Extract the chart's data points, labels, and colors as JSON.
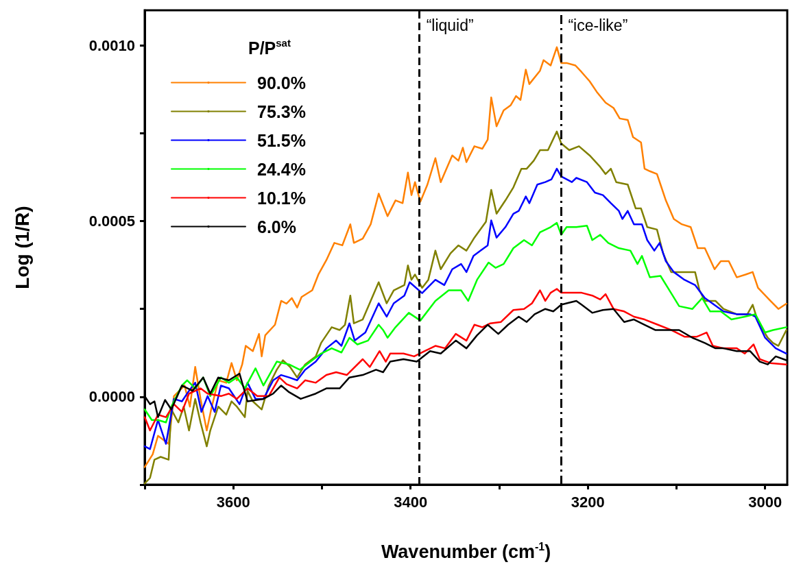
{
  "chart_data": {
    "type": "line",
    "xlabel": "Wavenumber (cm$^{-1}$)",
    "ylabel": "Log (1/R)",
    "legend_title": "P/P$^{sat}$",
    "legend": "top left",
    "marker": "none",
    "line_style": "solid",
    "grid": false,
    "xlim": [
      3700,
      2975
    ],
    "xticks": [
      {
        "value": 3700,
        "label": null
      },
      3600,
      {
        "value": 3500,
        "label": null
      },
      3400,
      {
        "value": 3300,
        "label": null
      },
      3200,
      {
        "value": 3100,
        "label": null
      },
      3000
    ],
    "ylim": [
      -0.00025,
      0.0011
    ],
    "yticks": [
      {
        "value": -0.00025,
        "label": null
      },
      {
        "value": 0,
        "label": "0.0000"
      },
      {
        "value": 0.00025,
        "label": null
      },
      {
        "value": 0.0005,
        "label": "0.0005"
      },
      {
        "value": 0.00075,
        "label": null
      },
      {
        "value": 0.001,
        "label": "0.0010"
      }
    ],
    "ref_lines": [
      {
        "axis": "x",
        "value": 3390,
        "label": "“liquid”",
        "line_style": "dashed",
        "color": "#000000"
      },
      {
        "axis": "x",
        "value": 3230,
        "label": "“ice-like”",
        "line_style": "dashdot",
        "color": "#000000"
      }
    ],
    "series": [
      {
        "name": "90.0%",
        "color": "#ff8000",
        "x": [
          3700,
          3691,
          3685,
          3673,
          3667,
          3655,
          3649,
          3643,
          3637,
          3630,
          3625,
          3617,
          3608,
          3602,
          3596,
          3590,
          3586,
          3578,
          3571,
          3568,
          3564,
          3553,
          3546,
          3540,
          3534,
          3528,
          3523,
          3511,
          3504,
          3495,
          3486,
          3477,
          3468,
          3464,
          3454,
          3445,
          3436,
          3426,
          3417,
          3409,
          3403,
          3399,
          3395,
          3389,
          3381,
          3372,
          3366,
          3353,
          3346,
          3341,
          3337,
          3328,
          3319,
          3313,
          3309,
          3303,
          3295,
          3287,
          3281,
          3276,
          3270,
          3266,
          3254,
          3250,
          3242,
          3235,
          3230,
          3224,
          3214,
          3207,
          3198,
          3190,
          3180,
          3171,
          3164,
          3155,
          3149,
          3140,
          3136,
          3130,
          3122,
          3118,
          3112,
          3103,
          3094,
          3084,
          3076,
          3068,
          3057,
          3050,
          3041,
          3032,
          3022,
          3014,
          3008,
          2994,
          2985,
          2976
        ],
        "values": [
          -0.0002,
          -0.000164,
          -0.000111,
          -0.000134,
          2e-06,
          3.2e-05,
          -2.8e-05,
          8.5e-05,
          -6e-06,
          -9.6e-05,
          -3.6e-05,
          4.7e-05,
          4e-05,
          9.6e-05,
          4.7e-05,
          9.2e-05,
          0.000145,
          0.00013,
          0.000179,
          0.000115,
          0.000175,
          0.000205,
          0.000273,
          0.000265,
          0.000281,
          0.000254,
          0.000284,
          0.000303,
          0.000348,
          0.000389,
          0.000438,
          0.000431,
          0.000491,
          0.000438,
          0.00045,
          0.000491,
          0.000578,
          0.000514,
          0.000559,
          0.000551,
          0.000638,
          0.000574,
          0.000611,
          0.000555,
          0.000604,
          0.000679,
          0.000611,
          0.000687,
          0.000672,
          0.000709,
          0.000668,
          0.000713,
          0.000706,
          0.000732,
          0.000852,
          0.00077,
          0.000815,
          0.00083,
          0.000856,
          0.000845,
          0.000931,
          0.00089,
          0.000928,
          0.000958,
          0.000943,
          0.000995,
          0.00095,
          0.00095,
          0.000943,
          0.000924,
          0.000898,
          0.000868,
          0.000837,
          0.000822,
          0.000792,
          0.000788,
          0.000739,
          0.000724,
          0.000649,
          0.000642,
          0.000634,
          0.000604,
          0.000559,
          0.000506,
          0.000491,
          0.000483,
          0.000423,
          0.000423,
          0.000363,
          0.000386,
          0.000386,
          0.00034,
          0.000348,
          0.000355,
          0.00031,
          0.000273,
          0.00025,
          0.000265
        ]
      },
      {
        "name": "75.3%",
        "color": "#808000",
        "x": [
          3700,
          3694,
          3689,
          3682,
          3673,
          3670,
          3662,
          3656,
          3650,
          3643,
          3637,
          3630,
          3626,
          3617,
          3608,
          3602,
          3596,
          3587,
          3584,
          3578,
          3568,
          3560,
          3551,
          3544,
          3536,
          3528,
          3519,
          3507,
          3501,
          3489,
          3480,
          3474,
          3468,
          3464,
          3454,
          3436,
          3427,
          3419,
          3407,
          3403,
          3399,
          3395,
          3387,
          3380,
          3372,
          3366,
          3355,
          3346,
          3337,
          3328,
          3315,
          3309,
          3303,
          3293,
          3284,
          3275,
          3269,
          3261,
          3254,
          3245,
          3235,
          3230,
          3221,
          3210,
          3198,
          3187,
          3180,
          3174,
          3168,
          3155,
          3146,
          3140,
          3133,
          3122,
          3115,
          3106,
          3094,
          3079,
          3074,
          3068,
          3056,
          3047,
          3032,
          3020,
          3014,
          3008,
          2997,
          2991,
          2985,
          2976
        ],
        "values": [
          -0.000247,
          -0.000231,
          -0.000179,
          -0.000171,
          -0.000179,
          -3.6e-05,
          -7.3e-05,
          -2.8e-05,
          -9.6e-05,
          -6e-06,
          -7.3e-05,
          -0.000141,
          -9.6e-05,
          -2.8e-05,
          -5.1e-05,
          -1.3e-05,
          -2.8e-05,
          -5.8e-05,
          1.7e-05,
          -1.3e-05,
          -3.6e-05,
          3.2e-05,
          7.7e-05,
          0.000104,
          8.5e-05,
          5.5e-05,
          9.2e-05,
          0.000115,
          0.000153,
          0.000198,
          0.00019,
          0.000205,
          0.000288,
          0.000209,
          0.00022,
          0.000326,
          0.000266,
          0.000303,
          0.000318,
          0.000374,
          0.000333,
          0.000348,
          0.00031,
          0.000333,
          0.000416,
          0.000363,
          0.000408,
          0.000431,
          0.000416,
          0.000453,
          0.000498,
          0.000589,
          0.000521,
          0.000559,
          0.000596,
          0.000649,
          0.000649,
          0.000672,
          0.000702,
          0.000702,
          0.000755,
          0.000721,
          0.000702,
          0.000713,
          0.000687,
          0.000657,
          0.000634,
          0.000649,
          0.000611,
          0.000604,
          0.000536,
          0.000536,
          0.000483,
          0.000476,
          0.000408,
          0.000355,
          0.000355,
          0.000355,
          0.000303,
          0.000273,
          0.000273,
          0.00025,
          0.000235,
          0.000235,
          0.000262,
          0.000213,
          0.000168,
          0.000153,
          0.000145,
          0.00019
        ]
      },
      {
        "name": "51.5%",
        "color": "#0000ff",
        "x": [
          3700,
          3694,
          3685,
          3676,
          3667,
          3658,
          3650,
          3643,
          3636,
          3629,
          3621,
          3614,
          3605,
          3593,
          3584,
          3575,
          3566,
          3555,
          3546,
          3537,
          3528,
          3519,
          3507,
          3495,
          3484,
          3478,
          3469,
          3463,
          3451,
          3436,
          3427,
          3419,
          3407,
          3401,
          3387,
          3372,
          3362,
          3353,
          3343,
          3337,
          3329,
          3321,
          3313,
          3309,
          3303,
          3293,
          3284,
          3278,
          3270,
          3266,
          3257,
          3248,
          3241,
          3235,
          3230,
          3218,
          3213,
          3201,
          3192,
          3183,
          3174,
          3165,
          3161,
          3155,
          3148,
          3139,
          3133,
          3125,
          3119,
          3112,
          3103,
          3091,
          3079,
          3068,
          3047,
          3032,
          3017,
          3011,
          3000,
          2988,
          2976
        ],
        "values": [
          -0.000141,
          -0.000149,
          -6.6e-05,
          -0.000134,
          -6e-06,
          -1.3e-05,
          1.7e-05,
          4e-05,
          -4.3e-05,
          2e-06,
          -4.3e-05,
          3.2e-05,
          2.4e-05,
          -2.1e-05,
          4e-05,
          -6e-06,
          -6e-06,
          4.7e-05,
          6.2e-05,
          5.5e-05,
          4.7e-05,
          7.7e-05,
          0.0001,
          0.000138,
          0.00016,
          0.000145,
          0.000209,
          0.00016,
          0.000183,
          0.000266,
          0.000228,
          0.000266,
          0.000288,
          0.000326,
          0.000295,
          0.000333,
          0.000318,
          0.000363,
          0.000378,
          0.000355,
          0.000401,
          0.000416,
          0.000431,
          0.000502,
          0.000453,
          0.000483,
          0.000521,
          0.000529,
          0.00057,
          0.000551,
          0.000604,
          0.000611,
          0.000619,
          0.000649,
          0.000627,
          0.000611,
          0.000623,
          0.000611,
          0.000581,
          0.000574,
          0.000551,
          0.000529,
          0.000506,
          0.000529,
          0.000491,
          0.000491,
          0.000446,
          0.000416,
          0.000438,
          0.000386,
          0.000355,
          0.000333,
          0.000318,
          0.000281,
          0.000243,
          0.000235,
          0.000235,
          0.000228,
          0.000168,
          0.000138,
          0.000123
        ]
      },
      {
        "name": "24.4%",
        "color": "#00ff00",
        "x": [
          3700,
          3692,
          3685,
          3676,
          3670,
          3658,
          3652,
          3643,
          3634,
          3626,
          3614,
          3605,
          3596,
          3587,
          3575,
          3566,
          3551,
          3537,
          3525,
          3513,
          3501,
          3489,
          3478,
          3469,
          3460,
          3448,
          3436,
          3431,
          3426,
          3417,
          3402,
          3389,
          3372,
          3357,
          3343,
          3335,
          3325,
          3312,
          3304,
          3295,
          3284,
          3272,
          3263,
          3254,
          3242,
          3235,
          3230,
          3224,
          3213,
          3201,
          3195,
          3186,
          3177,
          3165,
          3152,
          3144,
          3139,
          3130,
          3118,
          3106,
          3097,
          3082,
          3071,
          3062,
          3050,
          3038,
          3023,
          3011,
          3000,
          2991,
          2976
        ],
        "values": [
          -3.6e-05,
          -6.6e-05,
          -6.6e-05,
          -7.3e-05,
          -2.8e-05,
          3.2e-05,
          4.7e-05,
          2.4e-05,
          5.5e-05,
          2e-06,
          5.5e-05,
          4e-05,
          5.5e-05,
          2.4e-05,
          8.1e-05,
          3.2e-05,
          0.0001,
          9.2e-05,
          7.7e-05,
          0.0001,
          0.000123,
          0.000138,
          0.000126,
          0.000168,
          0.000149,
          0.00016,
          0.000205,
          0.00019,
          0.000168,
          0.000198,
          0.000239,
          0.000217,
          0.000273,
          0.000303,
          0.000303,
          0.000273,
          0.000333,
          0.000382,
          0.000367,
          0.000378,
          0.000423,
          0.000446,
          0.000431,
          0.000468,
          0.000483,
          0.000495,
          0.000461,
          0.000483,
          0.000483,
          0.000487,
          0.000446,
          0.000461,
          0.000438,
          0.000423,
          0.000416,
          0.000378,
          0.000401,
          0.00034,
          0.000344,
          0.000295,
          0.000258,
          0.00025,
          0.000281,
          0.000243,
          0.000243,
          0.00022,
          0.000228,
          0.000235,
          0.000183,
          0.00019,
          0.000198
        ]
      },
      {
        "name": "10.1%",
        "color": "#ff0000",
        "x": [
          3700,
          3694,
          3685,
          3676,
          3667,
          3658,
          3650,
          3637,
          3629,
          3614,
          3605,
          3596,
          3584,
          3573,
          3560,
          3548,
          3540,
          3528,
          3519,
          3507,
          3495,
          3484,
          3472,
          3454,
          3446,
          3435,
          3428,
          3423,
          3408,
          3396,
          3384,
          3372,
          3361,
          3349,
          3337,
          3328,
          3319,
          3310,
          3298,
          3284,
          3272,
          3263,
          3254,
          3248,
          3242,
          3235,
          3230,
          3218,
          3207,
          3195,
          3186,
          3180,
          3171,
          3159,
          3148,
          3136,
          3121,
          3106,
          3091,
          3077,
          3066,
          3059,
          3047,
          3032,
          3023,
          3013,
          3006,
          2994,
          2976
        ],
        "values": [
          -5.8e-05,
          -9.6e-05,
          -5.1e-05,
          -5.8e-05,
          -2.1e-05,
          -4.3e-05,
          9e-06,
          2.4e-05,
          9e-06,
          2e-06,
          9e-06,
          -6e-06,
          2.4e-05,
          2e-06,
          2e-06,
          5.5e-05,
          3.6e-05,
          2.4e-05,
          4.7e-05,
          4e-05,
          6.2e-05,
          7e-05,
          6.2e-05,
          0.000107,
          8.5e-05,
          0.00013,
          0.0001,
          0.000123,
          0.000123,
          0.000115,
          0.00013,
          0.000145,
          0.000138,
          0.000179,
          0.00016,
          0.000205,
          0.000198,
          0.000209,
          0.000213,
          0.000247,
          0.00025,
          0.000266,
          0.000303,
          0.000273,
          0.000296,
          0.000307,
          0.000296,
          0.000296,
          0.000296,
          0.000288,
          0.000277,
          0.000292,
          0.00025,
          0.000243,
          0.000228,
          0.00022,
          0.000205,
          0.00019,
          0.000171,
          0.000171,
          0.000183,
          0.000145,
          0.000138,
          0.000138,
          0.000123,
          0.000149,
          0.000107,
          9.6e-05,
          9.2e-05
        ]
      },
      {
        "name": "6.0%",
        "color": "#000000",
        "x": [
          3700,
          3694,
          3689,
          3685,
          3677,
          3670,
          3658,
          3646,
          3634,
          3626,
          3617,
          3605,
          3593,
          3584,
          3566,
          3555,
          3546,
          3537,
          3524,
          3507,
          3495,
          3480,
          3469,
          3454,
          3439,
          3431,
          3423,
          3408,
          3393,
          3378,
          3366,
          3349,
          3337,
          3325,
          3313,
          3301,
          3290,
          3278,
          3269,
          3260,
          3248,
          3239,
          3230,
          3224,
          3213,
          3207,
          3195,
          3183,
          3171,
          3159,
          3148,
          3136,
          3124,
          3112,
          3097,
          3082,
          3068,
          3056,
          3047,
          3032,
          3017,
          3006,
          2997,
          2988,
          2976
        ],
        "values": [
          2e-06,
          -2.1e-05,
          -1.3e-05,
          -5.8e-05,
          -9e-06,
          -3.6e-05,
          3.2e-05,
          1.7e-05,
          5.5e-05,
          9e-06,
          5.5e-05,
          4.7e-05,
          6.6e-05,
          -1.3e-05,
          -6e-06,
          9e-06,
          3.2e-05,
          1.3e-05,
          -6e-06,
          9e-06,
          2.4e-05,
          2.4e-05,
          5.5e-05,
          6.2e-05,
          7.7e-05,
          7e-05,
          0.0001,
          0.000107,
          0.0001,
          0.00013,
          0.000123,
          0.00016,
          0.000138,
          0.000175,
          0.000205,
          0.000179,
          0.000205,
          0.000228,
          0.000213,
          0.000235,
          0.00025,
          0.000243,
          0.000262,
          0.000266,
          0.000273,
          0.000262,
          0.000239,
          0.000247,
          0.00025,
          0.000213,
          0.00022,
          0.000205,
          0.00019,
          0.00019,
          0.00019,
          0.000168,
          0.000153,
          0.000138,
          0.000138,
          0.00013,
          0.00013,
          0.0001,
          9.2e-05,
          0.000115,
          0.000104
        ]
      }
    ]
  }
}
